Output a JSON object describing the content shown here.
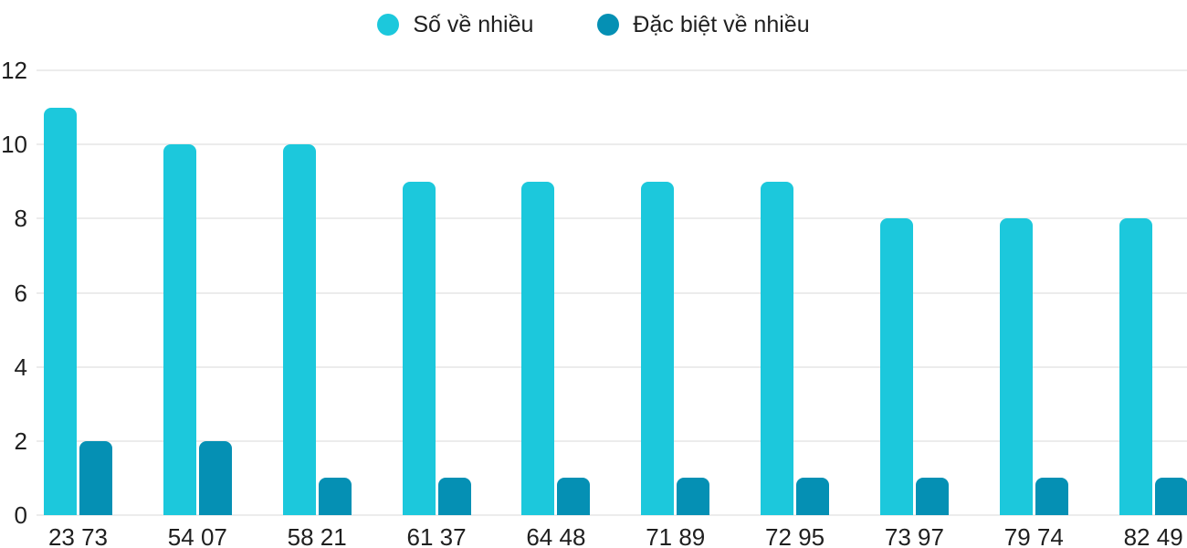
{
  "legend": {
    "items": [
      {
        "label": "Số về nhiều",
        "color": "#1cc8dc"
      },
      {
        "label": "Đặc biệt về nhiều",
        "color": "#0590b4"
      }
    ]
  },
  "chart_data": {
    "type": "bar",
    "title": "",
    "xlabel": "",
    "ylabel": "",
    "categories": [
      "23 73",
      "54 07",
      "58 21",
      "61 37",
      "64 48",
      "71 89",
      "72 95",
      "73 97",
      "79 74",
      "82 49"
    ],
    "series": [
      {
        "name": "Số về nhiều",
        "color": "#1cc8dc",
        "values": [
          11,
          10,
          10,
          9,
          9,
          9,
          9,
          8,
          8,
          8
        ]
      },
      {
        "name": "Đặc biệt về nhiều",
        "color": "#0590b4",
        "values": [
          2,
          2,
          1,
          1,
          1,
          1,
          1,
          1,
          1,
          1
        ]
      }
    ],
    "ylim": [
      0,
      12
    ],
    "yticks": [
      0,
      2,
      4,
      6,
      8,
      10,
      12
    ],
    "grid": true,
    "legend_position": "top-center",
    "axis_text_color": "#1f1f1f",
    "gridline_color": "#ececec"
  }
}
